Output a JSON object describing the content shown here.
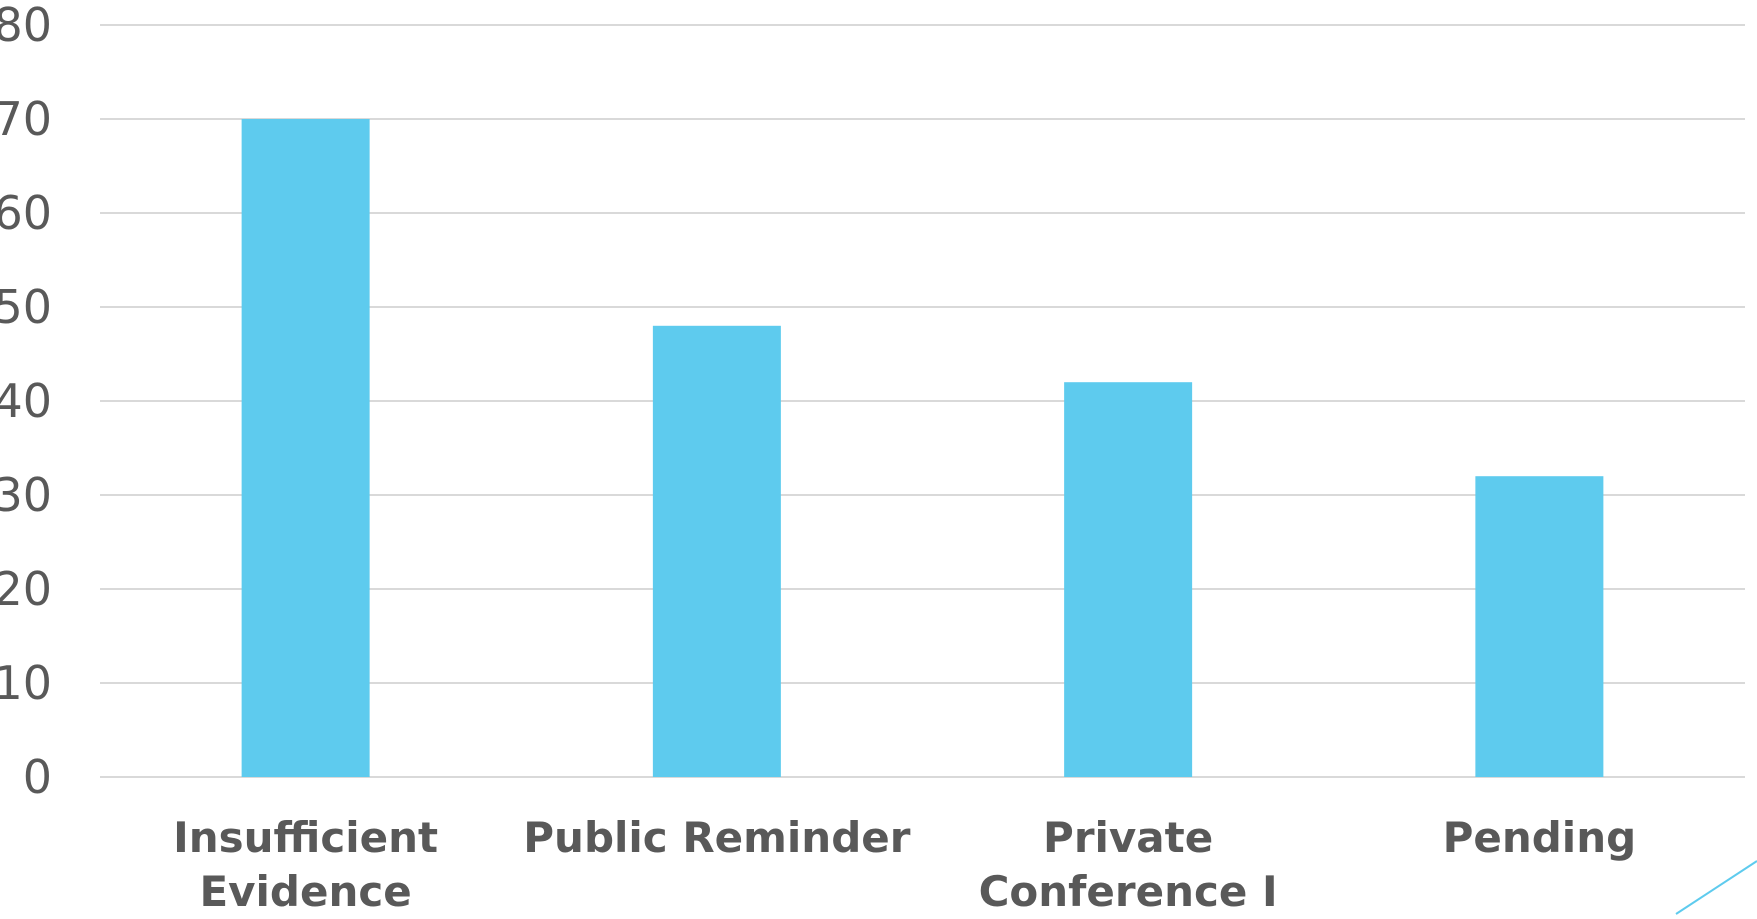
{
  "chart_data": {
    "type": "bar",
    "categories": [
      [
        "Insufficient",
        "Evidence"
      ],
      [
        "Public Reminder"
      ],
      [
        "Private",
        "Conference I"
      ],
      [
        "Pending"
      ]
    ],
    "values": [
      70,
      48,
      42,
      32
    ],
    "ylim": [
      0,
      80
    ],
    "yticks": [
      "0",
      "10",
      "20",
      "30",
      "40",
      "50",
      "60",
      "70",
      "80"
    ],
    "title": "",
    "xlabel": "",
    "ylabel": "",
    "grid": true,
    "legend": "none",
    "colors": {
      "bar": "#5ECBEE",
      "grid": "#D9D9D9",
      "text": "#595959",
      "accent_line": "#5ECBEE"
    }
  }
}
